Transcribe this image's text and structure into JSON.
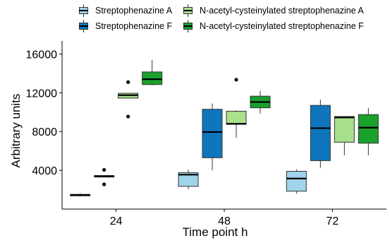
{
  "chart_data": {
    "type": "boxplot",
    "xlabel": "Time point h",
    "ylabel": "Arbitrary units",
    "categories": [
      "24",
      "48",
      "72"
    ],
    "ylim": [
      0,
      17200
    ],
    "yticks": [
      4000,
      8000,
      12000,
      16000
    ],
    "yticklabels": [
      "4000",
      "8000",
      "12000",
      "16000"
    ],
    "legend_position": "top",
    "series": [
      {
        "name": "Streptophenazine A",
        "color": "#9fd4ea",
        "boxes": [
          {
            "min": 1300,
            "q1": 1380,
            "median": 1450,
            "q3": 1520,
            "max": 1620,
            "outliers": []
          },
          {
            "min": 2050,
            "q1": 2350,
            "median": 3550,
            "q3": 3750,
            "max": 4050,
            "outliers": []
          },
          {
            "min": 1600,
            "q1": 1850,
            "median": 3150,
            "q3": 3900,
            "max": 4100,
            "outliers": []
          }
        ]
      },
      {
        "name": "Streptophenazine F",
        "color": "#0f75bc",
        "boxes": [
          {
            "min": 3300,
            "q1": 3350,
            "median": 3400,
            "q3": 3450,
            "max": 3500,
            "outliers": [
              4050,
              2550
            ]
          },
          {
            "min": 4000,
            "q1": 5300,
            "median": 7950,
            "q3": 10300,
            "max": 10900,
            "outliers": []
          },
          {
            "min": 4250,
            "q1": 5000,
            "median": 8350,
            "q3": 10700,
            "max": 11300,
            "outliers": []
          }
        ]
      },
      {
        "name": "N-acetyl-cysteinylated streptophenazine A",
        "color": "#a8e08c",
        "boxes": [
          {
            "min": 11400,
            "q1": 11450,
            "median": 11750,
            "q3": 11950,
            "max": 12000,
            "outliers": [
              13100,
              9550
            ]
          },
          {
            "min": 7350,
            "q1": 8750,
            "median": 8800,
            "q3": 10100,
            "max": 10200,
            "outliers": [
              13350
            ]
          },
          {
            "min": 5550,
            "q1": 6900,
            "median": 9450,
            "q3": 9550,
            "max": 9600,
            "outliers": []
          }
        ]
      },
      {
        "name": "N-acetyl-cysteinylated streptophenazine F",
        "color": "#1aa02c",
        "boxes": [
          {
            "min": 12750,
            "q1": 12850,
            "median": 13400,
            "q3": 14150,
            "max": 15400,
            "outliers": []
          },
          {
            "min": 9850,
            "q1": 10450,
            "median": 11050,
            "q3": 11650,
            "max": 12200,
            "outliers": []
          },
          {
            "min": 5550,
            "q1": 6800,
            "median": 8400,
            "q3": 9750,
            "max": 10450,
            "outliers": []
          }
        ]
      }
    ]
  }
}
